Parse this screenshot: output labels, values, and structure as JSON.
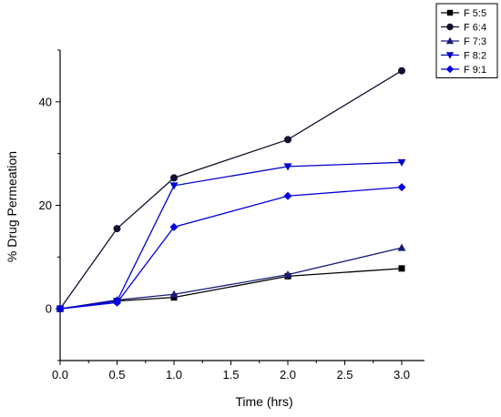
{
  "chart_data": {
    "type": "line",
    "xlabel": "Time (hrs)",
    "ylabel": "% Drug Permeation",
    "xlim": [
      0,
      3.2
    ],
    "ylim": [
      -10,
      50
    ],
    "xticks": [
      0.0,
      0.5,
      1.0,
      1.5,
      2.0,
      2.5,
      3.0
    ],
    "xtick_labels": [
      "0.0",
      "0.5",
      "1.0",
      "1.5",
      "2.0",
      "2.5",
      "3.0"
    ],
    "yticks": [
      0,
      20,
      40
    ],
    "ytick_labels": [
      "0",
      "20",
      "40"
    ],
    "grid": false,
    "legend_position": "top-right",
    "x": [
      0,
      0.5,
      1.0,
      2.0,
      3.0
    ],
    "series": [
      {
        "name": "F 5:5",
        "marker": "square",
        "color": "#000000",
        "values": [
          0,
          1.5,
          2.2,
          6.3,
          7.8
        ]
      },
      {
        "name": "F 6:4",
        "marker": "circle",
        "color": "#101030",
        "values": [
          0,
          15.5,
          25.3,
          32.7,
          46.0
        ]
      },
      {
        "name": "F 7:3",
        "marker": "triangle-up",
        "color": "#1a1a7a",
        "values": [
          0,
          1.7,
          2.8,
          6.6,
          11.8
        ]
      },
      {
        "name": "F 8:2",
        "marker": "triangle-down",
        "color": "#0000cc",
        "values": [
          0,
          1.5,
          23.8,
          27.5,
          28.3
        ]
      },
      {
        "name": "F 9:1",
        "marker": "diamond",
        "color": "#0000e0",
        "values": [
          0,
          1.2,
          15.8,
          21.8,
          23.5
        ]
      }
    ]
  }
}
